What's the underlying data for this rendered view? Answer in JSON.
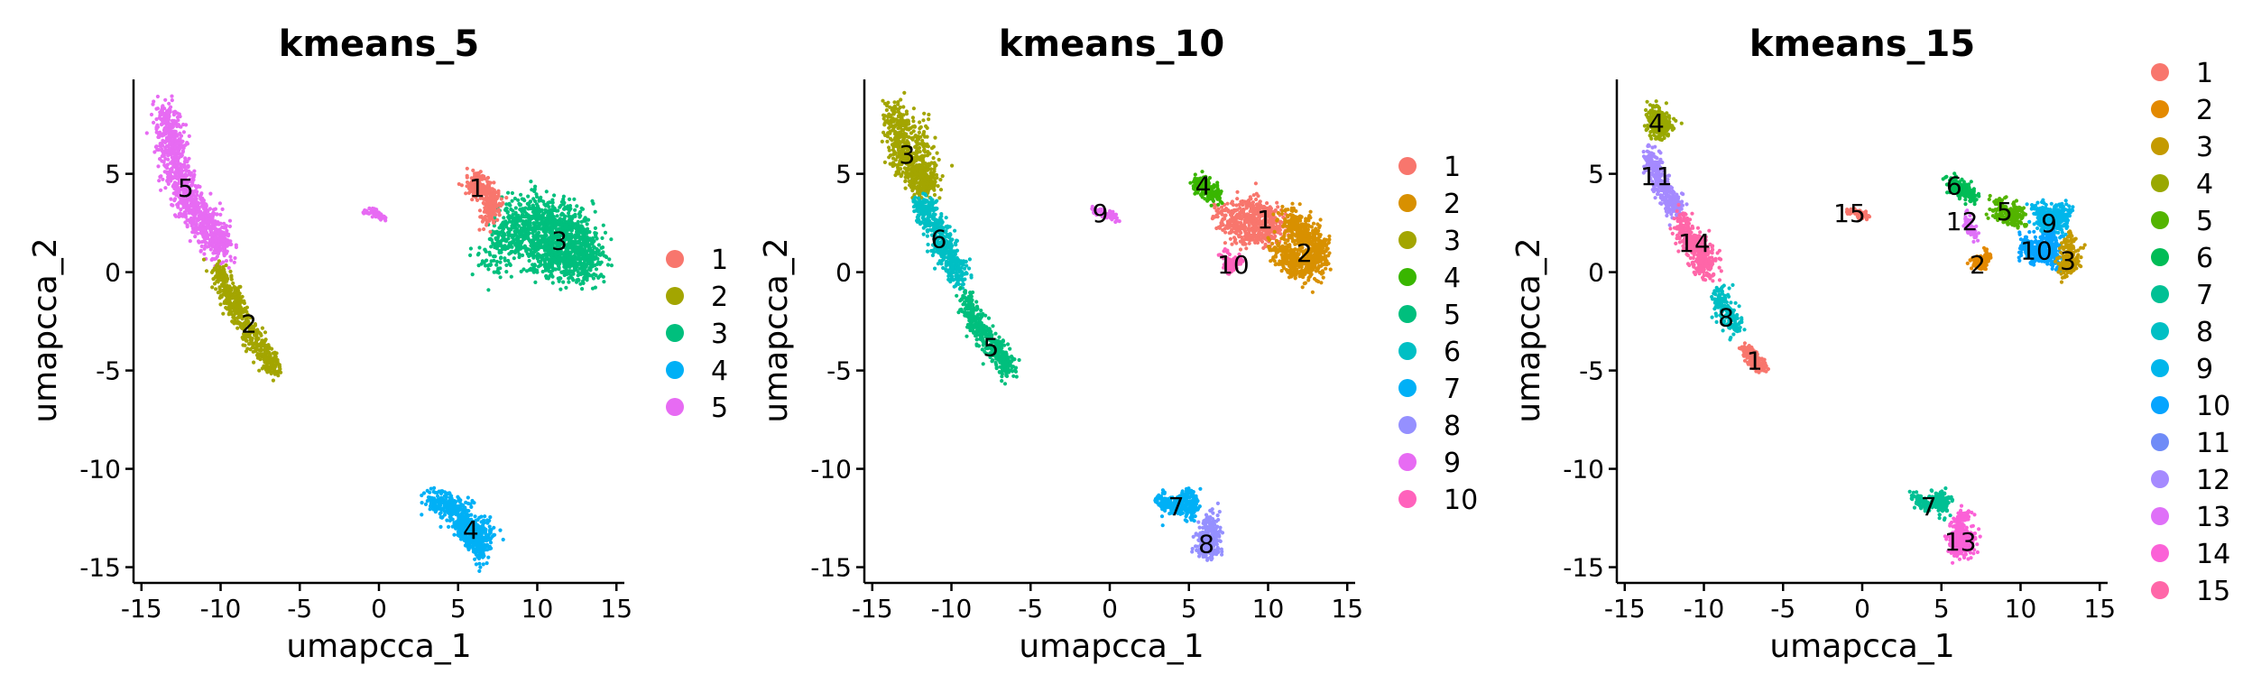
{
  "chart_data": [
    {
      "type": "scatter",
      "title": "kmeans_5",
      "xlabel": "umapcca_1",
      "ylabel": "umapcca_2",
      "xlim": [
        -15.5,
        15.5
      ],
      "ylim": [
        -15.8,
        9.8
      ],
      "x_ticks": [
        -15,
        -10,
        -5,
        0,
        5,
        10,
        15
      ],
      "y_ticks": [
        5,
        0,
        -5,
        -10,
        -15
      ],
      "legend_position": "right",
      "clusters": [
        {
          "name": "1",
          "color": "#F8766D",
          "label_x": 6.2,
          "label_y": 4.3
        },
        {
          "name": "2",
          "color": "#A3A500",
          "label_x": -8.2,
          "label_y": -2.6
        },
        {
          "name": "3",
          "color": "#00BF7D",
          "label_x": 11.4,
          "label_y": 1.6
        },
        {
          "name": "4",
          "color": "#00B0F6",
          "label_x": 5.8,
          "label_y": -13.1
        },
        {
          "name": "5",
          "color": "#E76BF3",
          "label_x": -12.2,
          "label_y": 4.3
        }
      ],
      "regions": [
        {
          "cluster": "5",
          "points": [
            [
              -13.5,
              8.2
            ],
            [
              -13.2,
              7.0
            ],
            [
              -13.0,
              5.8
            ],
            [
              -12.5,
              4.6
            ],
            [
              -12.0,
              3.5
            ],
            [
              -11.2,
              2.7
            ],
            [
              -10.5,
              2.0
            ],
            [
              -9.8,
              1.2
            ]
          ],
          "spread": 0.8
        },
        {
          "cluster": "2",
          "points": [
            [
              -10.3,
              0.2
            ],
            [
              -9.5,
              -1.0
            ],
            [
              -8.7,
              -2.2
            ],
            [
              -8.0,
              -3.2
            ],
            [
              -7.2,
              -4.2
            ],
            [
              -6.6,
              -4.8
            ]
          ],
          "spread": 0.55
        },
        {
          "cluster": "3",
          "points": [
            [
              9.5,
              3.0
            ],
            [
              11.0,
              2.5
            ],
            [
              12.5,
              2.0
            ],
            [
              13.2,
              0.5
            ],
            [
              11.5,
              0.6
            ],
            [
              10.2,
              1.2
            ],
            [
              8.6,
              2.6
            ],
            [
              7.2,
              0.6
            ]
          ],
          "spread": 1.1
        },
        {
          "cluster": "1",
          "points": [
            [
              5.8,
              4.6
            ],
            [
              6.6,
              4.2
            ],
            [
              7.3,
              3.6
            ],
            [
              6.8,
              2.6
            ]
          ],
          "spread": 0.55
        },
        {
          "cluster": "4",
          "points": [
            [
              3.2,
              -11.6
            ],
            [
              4.5,
              -11.8
            ],
            [
              5.3,
              -12.5
            ],
            [
              5.8,
              -13.4
            ],
            [
              6.4,
              -14.2
            ],
            [
              6.8,
              -12.6
            ]
          ],
          "spread": 0.65
        },
        {
          "cluster": "5",
          "points": [
            [
              -1.0,
              3.1
            ],
            [
              -0.2,
              3.0
            ],
            [
              0.4,
              2.7
            ]
          ],
          "spread": 0.18
        }
      ]
    },
    {
      "type": "scatter",
      "title": "kmeans_10",
      "xlabel": "umapcca_1",
      "ylabel": "umapcca_2",
      "xlim": [
        -15.5,
        15.5
      ],
      "ylim": [
        -15.8,
        9.8
      ],
      "x_ticks": [
        -15,
        -10,
        -5,
        0,
        5,
        10,
        15
      ],
      "y_ticks": [
        5,
        0,
        -5,
        -10,
        -15
      ],
      "legend_position": "right",
      "clusters": [
        {
          "name": "1",
          "color": "#F8766D",
          "label_x": 9.8,
          "label_y": 2.7
        },
        {
          "name": "2",
          "color": "#D89000",
          "label_x": 12.3,
          "label_y": 1.0
        },
        {
          "name": "3",
          "color": "#A3A500",
          "label_x": -12.8,
          "label_y": 6.0
        },
        {
          "name": "4",
          "color": "#39B600",
          "label_x": 5.9,
          "label_y": 4.4
        },
        {
          "name": "5",
          "color": "#00BF7D",
          "label_x": -7.5,
          "label_y": -3.8
        },
        {
          "name": "6",
          "color": "#00BFC4",
          "label_x": -10.8,
          "label_y": 1.7
        },
        {
          "name": "7",
          "color": "#00B0F6",
          "label_x": 4.2,
          "label_y": -11.9
        },
        {
          "name": "8",
          "color": "#9590FF",
          "label_x": 6.1,
          "label_y": -13.8
        },
        {
          "name": "9",
          "color": "#E76BF3",
          "label_x": -0.6,
          "label_y": 3.0
        },
        {
          "name": "10",
          "color": "#FF62BC",
          "label_x": 7.8,
          "label_y": 0.4
        }
      ],
      "regions": [
        {
          "cluster": "3",
          "points": [
            [
              -13.4,
              8.2
            ],
            [
              -13.4,
              7.0
            ],
            [
              -13.0,
              5.8
            ],
            [
              -12.2,
              5.0
            ],
            [
              -11.5,
              4.3
            ],
            [
              -12.0,
              7.5
            ]
          ],
          "spread": 0.75
        },
        {
          "cluster": "6",
          "points": [
            [
              -12.0,
              3.6
            ],
            [
              -11.2,
              2.5
            ],
            [
              -10.6,
              1.5
            ],
            [
              -10.0,
              0.6
            ],
            [
              -9.4,
              -0.4
            ]
          ],
          "spread": 0.65
        },
        {
          "cluster": "5",
          "points": [
            [
              -9.2,
              -1.2
            ],
            [
              -8.5,
              -2.5
            ],
            [
              -7.6,
              -3.6
            ],
            [
              -6.8,
              -4.4
            ],
            [
              -6.4,
              -5.0
            ]
          ],
          "spread": 0.55
        },
        {
          "cluster": "1",
          "points": [
            [
              8.5,
              3.2
            ],
            [
              9.6,
              2.8
            ],
            [
              10.5,
              2.2
            ],
            [
              8.6,
              2.0
            ],
            [
              7.0,
              3.0
            ]
          ],
          "spread": 0.75
        },
        {
          "cluster": "2",
          "points": [
            [
              11.2,
              2.6
            ],
            [
              12.4,
              2.0
            ],
            [
              13.2,
              1.0
            ],
            [
              12.5,
              0.2
            ],
            [
              11.6,
              0.6
            ],
            [
              10.6,
              1.2
            ]
          ],
          "spread": 0.75
        },
        {
          "cluster": "4",
          "points": [
            [
              5.6,
              4.6
            ],
            [
              6.2,
              4.2
            ],
            [
              6.9,
              3.8
            ]
          ],
          "spread": 0.45
        },
        {
          "cluster": "10",
          "points": [
            [
              7.2,
              1.0
            ],
            [
              7.6,
              0.2
            ],
            [
              8.2,
              0.6
            ]
          ],
          "spread": 0.3
        },
        {
          "cluster": "7",
          "points": [
            [
              3.2,
              -11.6
            ],
            [
              4.2,
              -11.9
            ],
            [
              5.1,
              -11.4
            ],
            [
              5.2,
              -12.4
            ]
          ],
          "spread": 0.45
        },
        {
          "cluster": "8",
          "points": [
            [
              6.6,
              -12.4
            ],
            [
              6.2,
              -13.3
            ],
            [
              6.0,
              -14.1
            ],
            [
              6.7,
              -13.8
            ]
          ],
          "spread": 0.55
        },
        {
          "cluster": "9",
          "points": [
            [
              -1.0,
              3.1
            ],
            [
              -0.2,
              3.0
            ],
            [
              0.4,
              2.7
            ]
          ],
          "spread": 0.18
        }
      ]
    },
    {
      "type": "scatter",
      "title": "kmeans_15",
      "xlabel": "umapcca_1",
      "ylabel": "umapcca_2",
      "xlim": [
        -15.5,
        15.5
      ],
      "ylim": [
        -15.8,
        9.8
      ],
      "x_ticks": [
        -15,
        -10,
        -5,
        0,
        5,
        10,
        15
      ],
      "y_ticks": [
        5,
        0,
        -5,
        -10,
        -15
      ],
      "legend_position": "right",
      "clusters": [
        {
          "name": "1",
          "color": "#F8766D",
          "label_x": -6.8,
          "label_y": -4.5
        },
        {
          "name": "2",
          "color": "#E38900",
          "label_x": 7.3,
          "label_y": 0.4
        },
        {
          "name": "3",
          "color": "#C49A00",
          "label_x": 13.0,
          "label_y": 0.6
        },
        {
          "name": "4",
          "color": "#99A800",
          "label_x": -13.0,
          "label_y": 7.6
        },
        {
          "name": "5",
          "color": "#53B400",
          "label_x": 9.0,
          "label_y": 3.1
        },
        {
          "name": "6",
          "color": "#00BC56",
          "label_x": 5.8,
          "label_y": 4.4
        },
        {
          "name": "7",
          "color": "#00C094",
          "label_x": 4.2,
          "label_y": -11.9
        },
        {
          "name": "8",
          "color": "#00BFC4",
          "label_x": -8.6,
          "label_y": -2.3
        },
        {
          "name": "9",
          "color": "#00B6EB",
          "label_x": 11.8,
          "label_y": 2.5
        },
        {
          "name": "10",
          "color": "#06A4FF",
          "label_x": 11.0,
          "label_y": 1.1
        },
        {
          "name": "11",
          "color": "#A58AFF",
          "label_x": -13.0,
          "label_y": 4.9
        },
        {
          "name": "12",
          "color": "#DF70F8",
          "label_x": 6.3,
          "label_y": 2.6
        },
        {
          "name": "13",
          "color": "#FB61D7",
          "label_x": 6.2,
          "label_y": -13.7
        },
        {
          "name": "14",
          "color": "#FF66A8",
          "label_x": -10.6,
          "label_y": 1.5
        },
        {
          "name": "15",
          "color": "#F8766D",
          "label_x": -0.8,
          "label_y": 3.0
        }
      ],
      "legend_colors": [
        "#F8766D",
        "#E38900",
        "#C49A00",
        "#99A800",
        "#53B400",
        "#00BC56",
        "#00C094",
        "#00BFC4",
        "#00B6EB",
        "#06A4FF",
        "#6F8BF7",
        "#A58AFF",
        "#DF70F8",
        "#FB61D7",
        "#FF66A8"
      ],
      "regions": [
        {
          "cluster": "4",
          "points": [
            [
              -13.3,
              8.2
            ],
            [
              -13.0,
              7.3
            ],
            [
              -12.2,
              7.6
            ]
          ],
          "spread": 0.55
        },
        {
          "cluster": "11",
          "points": [
            [
              -13.4,
              6.0
            ],
            [
              -13.0,
              4.8
            ],
            [
              -12.2,
              3.8
            ],
            [
              -11.6,
              3.2
            ]
          ],
          "spread": 0.55
        },
        {
          "cluster": "14",
          "points": [
            [
              -11.5,
              2.6
            ],
            [
              -10.8,
              1.6
            ],
            [
              -10.0,
              0.8
            ],
            [
              -9.6,
              0.0
            ]
          ],
          "spread": 0.65
        },
        {
          "cluster": "8",
          "points": [
            [
              -9.2,
              -1.0
            ],
            [
              -8.6,
              -2.0
            ],
            [
              -8.0,
              -2.8
            ]
          ],
          "spread": 0.5
        },
        {
          "cluster": "1",
          "points": [
            [
              -7.3,
              -4.0
            ],
            [
              -6.8,
              -4.6
            ],
            [
              -6.4,
              -4.8
            ]
          ],
          "spread": 0.4
        },
        {
          "cluster": "6",
          "points": [
            [
              5.6,
              4.6
            ],
            [
              6.3,
              4.2
            ],
            [
              7.0,
              3.8
            ]
          ],
          "spread": 0.4
        },
        {
          "cluster": "5",
          "points": [
            [
              8.2,
              3.3
            ],
            [
              9.2,
              3.0
            ],
            [
              10.0,
              2.7
            ]
          ],
          "spread": 0.5
        },
        {
          "cluster": "9",
          "points": [
            [
              11.0,
              3.2
            ],
            [
              12.0,
              2.4
            ],
            [
              12.8,
              3.0
            ],
            [
              11.4,
              2.2
            ]
          ],
          "spread": 0.6
        },
        {
          "cluster": "10",
          "points": [
            [
              10.2,
              1.5
            ],
            [
              11.0,
              0.8
            ],
            [
              11.8,
              1.6
            ],
            [
              12.2,
              0.4
            ]
          ],
          "spread": 0.55
        },
        {
          "cluster": "3",
          "points": [
            [
              13.0,
              1.8
            ],
            [
              13.2,
              0.6
            ],
            [
              12.8,
              0.0
            ]
          ],
          "spread": 0.5
        },
        {
          "cluster": "12",
          "points": [
            [
              6.5,
              2.8
            ],
            [
              7.2,
              1.8
            ]
          ],
          "spread": 0.3
        },
        {
          "cluster": "2",
          "points": [
            [
              7.0,
              0.6
            ],
            [
              7.6,
              0.3
            ],
            [
              8.0,
              1.0
            ]
          ],
          "spread": 0.28
        },
        {
          "cluster": "7",
          "points": [
            [
              3.3,
              -11.6
            ],
            [
              4.2,
              -11.8
            ],
            [
              5.1,
              -11.4
            ],
            [
              5.2,
              -12.2
            ]
          ],
          "spread": 0.4
        },
        {
          "cluster": "13",
          "points": [
            [
              6.4,
              -12.4
            ],
            [
              6.2,
              -13.2
            ],
            [
              6.0,
              -14.1
            ],
            [
              6.8,
              -13.6
            ]
          ],
          "spread": 0.55
        },
        {
          "cluster": "15",
          "points": [
            [
              -1.0,
              3.1
            ],
            [
              -0.2,
              3.0
            ],
            [
              0.4,
              2.7
            ]
          ],
          "spread": 0.18
        }
      ]
    }
  ]
}
